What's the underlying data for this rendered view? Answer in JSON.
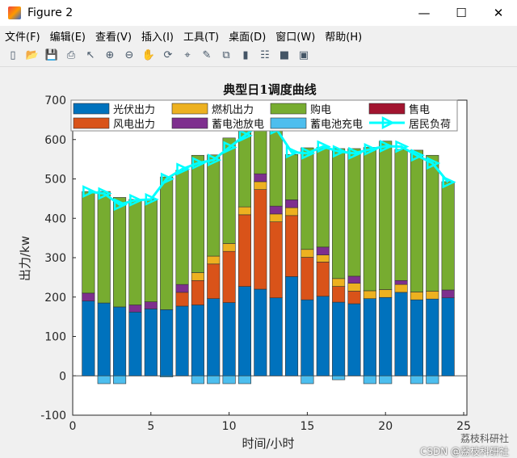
{
  "window": {
    "title": "Figure 2",
    "minimize": "—",
    "maximize": "☐",
    "close": "✕"
  },
  "menu": [
    "文件(F)",
    "编辑(E)",
    "查看(V)",
    "插入(I)",
    "工具(T)",
    "桌面(D)",
    "窗口(W)",
    "帮助(H)"
  ],
  "toolbar": [
    "new-file-icon",
    "open-folder-icon",
    "save-icon",
    "print-icon",
    "pointer-icon",
    "zoom-in-icon",
    "zoom-out-icon",
    "pan-icon",
    "rotate-icon",
    "data-cursor-icon",
    "brush-icon",
    "link-plot-icon",
    "colorbar-icon",
    "legend-icon",
    "hide-plot-tools-icon",
    "show-plot-tools-icon"
  ],
  "watermark": {
    "logo": "荔枝科研社",
    "csdn": "CSDN @荔枝科研社"
  },
  "chart_data": {
    "type": "bar",
    "title": "典型日1调度曲线",
    "xlabel": "时间/小时",
    "ylabel": "出力/kw",
    "xlim": [
      0,
      25
    ],
    "ylim": [
      -100,
      700
    ],
    "xticks": [
      0,
      5,
      10,
      15,
      20,
      25
    ],
    "yticks": [
      -100,
      0,
      100,
      200,
      300,
      400,
      500,
      600,
      700
    ],
    "legend_position": "top",
    "x": [
      1,
      2,
      3,
      4,
      5,
      6,
      7,
      8,
      9,
      10,
      11,
      12,
      13,
      14,
      15,
      16,
      17,
      18,
      19,
      20,
      21,
      22,
      23,
      24
    ],
    "series": [
      {
        "name": "光伏出力",
        "color": "#0072bd",
        "values": [
          190,
          185,
          175,
          162,
          170,
          168,
          177,
          180,
          196,
          186,
          227,
          220,
          198,
          252,
          193,
          202,
          187,
          183,
          196,
          199,
          212,
          193,
          195,
          198
        ]
      },
      {
        "name": "风电出力",
        "color": "#d95319",
        "values": [
          0,
          0,
          0,
          0,
          0,
          0,
          35,
          62,
          88,
          130,
          182,
          253,
          193,
          155,
          108,
          87,
          40,
          32,
          0,
          0,
          0,
          0,
          0,
          0
        ]
      },
      {
        "name": "燃机出力",
        "color": "#edb120",
        "values": [
          0,
          0,
          0,
          0,
          0,
          0,
          0,
          20,
          20,
          20,
          20,
          20,
          20,
          20,
          20,
          18,
          20,
          20,
          20,
          20,
          20,
          20,
          20,
          0
        ]
      },
      {
        "name": "蓄电池放电",
        "color": "#7e2f8e",
        "values": [
          20,
          0,
          0,
          18,
          18,
          0,
          20,
          0,
          0,
          0,
          0,
          20,
          20,
          20,
          0,
          20,
          0,
          18,
          0,
          0,
          10,
          0,
          0,
          20
        ]
      },
      {
        "name": "购电",
        "color": "#77ac30",
        "values": [
          258,
          283,
          278,
          268,
          260,
          337,
          290,
          298,
          257,
          268,
          230,
          140,
          200,
          115,
          258,
          253,
          330,
          324,
          364,
          377,
          333,
          360,
          345,
          275
        ]
      },
      {
        "name": "售电",
        "color": "#a2142f",
        "values": [
          0,
          0,
          0,
          0,
          0,
          0,
          0,
          0,
          0,
          0,
          0,
          0,
          0,
          0,
          0,
          0,
          0,
          0,
          0,
          0,
          0,
          0,
          0,
          0
        ]
      },
      {
        "name": "蓄电池充电",
        "color": "#4dbeee",
        "values": [
          0,
          -20,
          -20,
          0,
          0,
          -3,
          0,
          -20,
          -20,
          -20,
          -20,
          0,
          0,
          0,
          -20,
          0,
          -10,
          0,
          -20,
          -20,
          0,
          -20,
          -20,
          0
        ]
      },
      {
        "name": "居民负荷",
        "color": "#00ffff",
        "type": "line",
        "values": [
          468,
          463,
          435,
          446,
          448,
          500,
          525,
          540,
          548,
          580,
          610,
          640,
          628,
          568,
          565,
          582,
          570,
          565,
          575,
          583,
          582,
          560,
          540,
          492
        ]
      }
    ]
  }
}
